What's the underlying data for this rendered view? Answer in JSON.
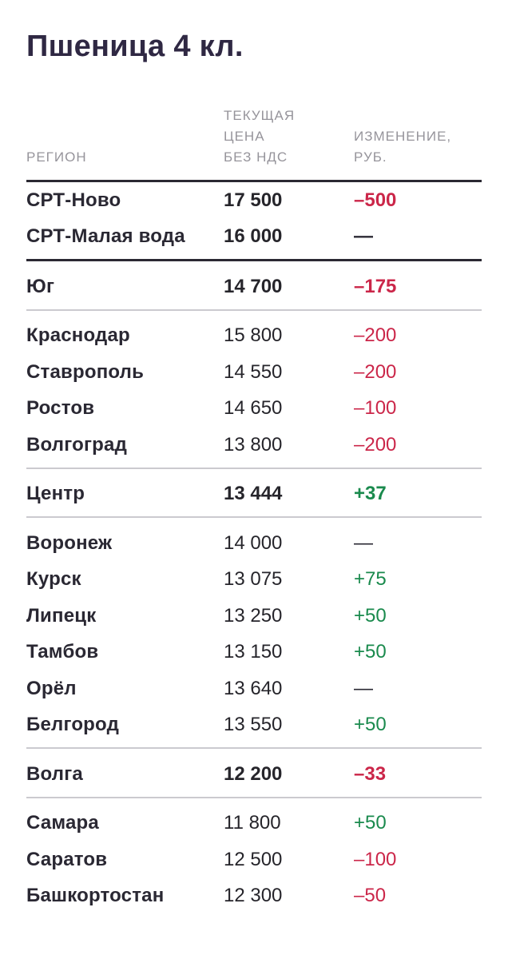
{
  "title": "Пшеница 4 кл.",
  "colors": {
    "title_text": "#2f2843",
    "body_text": "#26252b",
    "region_text": "#2a2833",
    "header_muted": "#96949b",
    "negative_red": "#cb2649",
    "positive_green": "#1a8a4d",
    "divider_dark": "#2b2933",
    "divider_light": "#cbcacf",
    "background": "#ffffff"
  },
  "table": {
    "header": {
      "region": "РЕГИОН",
      "price": "ТЕКУЩАЯ\nЦЕНА\nБЕЗ НДС",
      "change": "ИЗМЕНЕНИЕ,\nРУБ."
    },
    "rows": [
      {
        "region": "СРТ-Ново",
        "price": "17 500",
        "change": "–500",
        "trend": "down",
        "kind": "summary",
        "divider_after": "none"
      },
      {
        "region": "СРТ-Малая вода",
        "price": "16 000",
        "change": "—",
        "trend": "flat",
        "kind": "summary",
        "divider_after": "dark"
      },
      {
        "region": "Юг",
        "price": "14 700",
        "change": "–175",
        "trend": "down",
        "kind": "summary",
        "divider_after": "light"
      },
      {
        "region": "Краснодар",
        "price": "15 800",
        "change": "–200",
        "trend": "down",
        "kind": "detail",
        "divider_after": "none"
      },
      {
        "region": "Ставрополь",
        "price": "14 550",
        "change": "–200",
        "trend": "down",
        "kind": "detail",
        "divider_after": "none"
      },
      {
        "region": "Ростов",
        "price": "14 650",
        "change": "–100",
        "trend": "down",
        "kind": "detail",
        "divider_after": "none"
      },
      {
        "region": "Волгоград",
        "price": "13 800",
        "change": "–200",
        "trend": "down",
        "kind": "detail",
        "divider_after": "light"
      },
      {
        "region": "Центр",
        "price": "13 444",
        "change": "+37",
        "trend": "up",
        "kind": "summary",
        "divider_after": "light"
      },
      {
        "region": "Воронеж",
        "price": "14 000",
        "change": "—",
        "trend": "flat",
        "kind": "detail",
        "divider_after": "none"
      },
      {
        "region": "Курск",
        "price": "13 075",
        "change": "+75",
        "trend": "up",
        "kind": "detail",
        "divider_after": "none"
      },
      {
        "region": "Липецк",
        "price": "13 250",
        "change": "+50",
        "trend": "up",
        "kind": "detail",
        "divider_after": "none"
      },
      {
        "region": "Тамбов",
        "price": "13 150",
        "change": "+50",
        "trend": "up",
        "kind": "detail",
        "divider_after": "none"
      },
      {
        "region": "Орёл",
        "price": "13 640",
        "change": "—",
        "trend": "flat",
        "kind": "detail",
        "divider_after": "none"
      },
      {
        "region": "Белгород",
        "price": "13 550",
        "change": "+50",
        "trend": "up",
        "kind": "detail",
        "divider_after": "light"
      },
      {
        "region": "Волга",
        "price": "12 200",
        "change": "–33",
        "trend": "down",
        "kind": "summary",
        "divider_after": "light"
      },
      {
        "region": "Самара",
        "price": "11 800",
        "change": "+50",
        "trend": "up",
        "kind": "detail",
        "divider_after": "none"
      },
      {
        "region": "Саратов",
        "price": "12 500",
        "change": "–100",
        "trend": "down",
        "kind": "detail",
        "divider_after": "none"
      },
      {
        "region": "Башкортостан",
        "price": "12 300",
        "change": "–50",
        "trend": "down",
        "kind": "detail",
        "divider_after": "none"
      }
    ]
  },
  "chart_data": {
    "type": "table",
    "title": "Пшеница 4 кл.",
    "columns": [
      "РЕГИОН",
      "ТЕКУЩАЯ ЦЕНА БЕЗ НДС",
      "ИЗМЕНЕНИЕ, РУБ."
    ],
    "rows": [
      [
        "СРТ-Ново",
        17500,
        -500
      ],
      [
        "СРТ-Малая вода",
        16000,
        null
      ],
      [
        "Юг",
        14700,
        -175
      ],
      [
        "Краснодар",
        15800,
        -200
      ],
      [
        "Ставрополь",
        14550,
        -200
      ],
      [
        "Ростов",
        14650,
        -100
      ],
      [
        "Волгоград",
        13800,
        -200
      ],
      [
        "Центр",
        13444,
        37
      ],
      [
        "Воронеж",
        14000,
        null
      ],
      [
        "Курск",
        13075,
        75
      ],
      [
        "Липецк",
        13250,
        50
      ],
      [
        "Тамбов",
        13150,
        50
      ],
      [
        "Орёл",
        13640,
        null
      ],
      [
        "Белгород",
        13550,
        50
      ],
      [
        "Волга",
        12200,
        -33
      ],
      [
        "Самара",
        11800,
        50
      ],
      [
        "Саратов",
        12500,
        -100
      ],
      [
        "Башкортостан",
        12300,
        -50
      ]
    ]
  }
}
